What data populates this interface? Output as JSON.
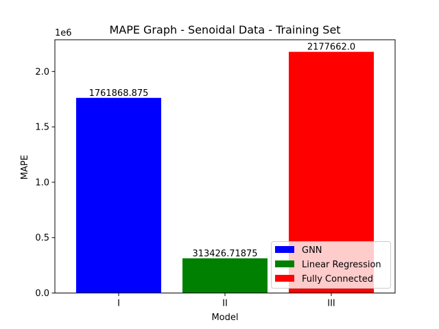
{
  "chart_data": {
    "type": "bar",
    "title": "MAPE Graph - Senoidal Data - Training Set",
    "xlabel": "Model",
    "ylabel": "MAPE",
    "offset_label": "1e6",
    "categories": [
      "I",
      "II",
      "III"
    ],
    "values": [
      1761868.875,
      313426.71875,
      2177662.0
    ],
    "value_labels": [
      "1761868.875",
      "313426.71875",
      "2177662.0"
    ],
    "colors": [
      "#0000ff",
      "#008000",
      "#ff0000"
    ],
    "ylim": [
      0,
      2286545.1
    ],
    "yticks": [
      0,
      500000,
      1000000,
      1500000,
      2000000
    ],
    "ytick_labels": [
      "0.0",
      "0.5",
      "1.0",
      "1.5",
      "2.0"
    ],
    "grid": false,
    "legend": {
      "placement": "lower-right",
      "entries": [
        {
          "label": "GNN",
          "color": "#0000ff"
        },
        {
          "label": "Linear Regression",
          "color": "#008000"
        },
        {
          "label": "Fully Connected",
          "color": "#ff0000"
        }
      ]
    }
  }
}
